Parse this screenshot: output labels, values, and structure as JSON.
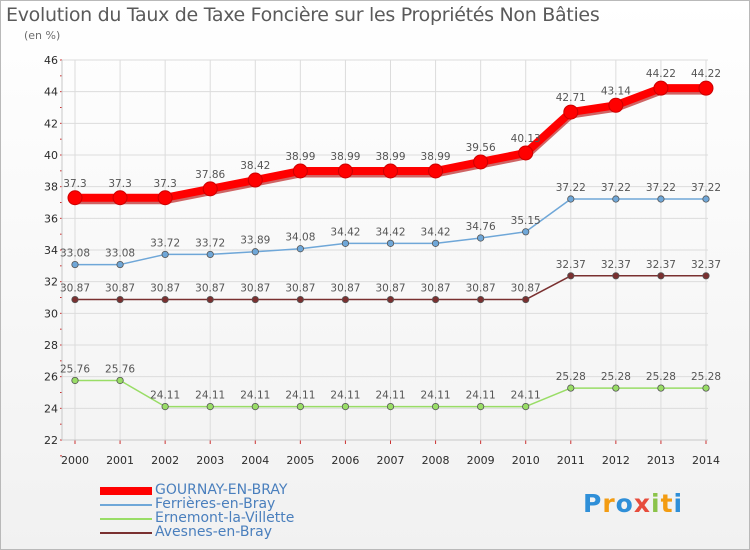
{
  "title": "Evolution du Taux de Taxe Foncière sur les Propriétés Non Bâties",
  "unit_label": "(en %)",
  "logo": {
    "text": "Proxiti",
    "letters": [
      "P",
      "r",
      "o",
      "x",
      "i",
      "t",
      "i"
    ],
    "colors": [
      "#2f8fd8",
      "#f39c12",
      "#2f8fd8",
      "#e74c3c",
      "#8bc34a",
      "#f39c12",
      "#2f8fd8"
    ]
  },
  "chart_data": {
    "type": "line",
    "title": "Evolution du Taux de Taxe Foncière sur les Propriétés Non Bâties",
    "ylabel": "(en %)",
    "xlabel": "",
    "ylim": [
      22,
      46
    ],
    "yticks": [
      22,
      24,
      26,
      28,
      30,
      32,
      34,
      36,
      38,
      40,
      42,
      44,
      46
    ],
    "grid": true,
    "legend_position": "bottom-left",
    "x": [
      "2000",
      "2001",
      "2002",
      "2003",
      "2004",
      "2005",
      "2006",
      "2007",
      "2008",
      "2009",
      "2010",
      "2011",
      "2012",
      "2013",
      "2014"
    ],
    "series": [
      {
        "name": "GOURNAY-EN-BRAY",
        "color": "#ff0000",
        "values": [
          37.3,
          37.3,
          37.3,
          37.86,
          38.42,
          38.99,
          38.99,
          38.99,
          38.99,
          39.56,
          40.13,
          42.71,
          43.14,
          44.22,
          44.22
        ]
      },
      {
        "name": "Ferrières-en-Bray",
        "color": "#6fa7d8",
        "values": [
          33.08,
          33.08,
          33.72,
          33.72,
          33.89,
          34.08,
          34.42,
          34.42,
          34.42,
          34.76,
          35.15,
          37.22,
          37.22,
          37.22,
          37.22
        ]
      },
      {
        "name": "Ernemont-la-Villette",
        "color": "#99dd66",
        "values": [
          25.76,
          25.76,
          24.11,
          24.11,
          24.11,
          24.11,
          24.11,
          24.11,
          24.11,
          24.11,
          24.11,
          25.28,
          25.28,
          25.28,
          25.28
        ]
      },
      {
        "name": "Avesnes-en-Bray",
        "color": "#7a3030",
        "values": [
          30.87,
          30.87,
          30.87,
          30.87,
          30.87,
          30.87,
          30.87,
          30.87,
          30.87,
          30.87,
          30.87,
          32.37,
          32.37,
          32.37,
          32.37
        ]
      }
    ],
    "data_labels": [
      [
        "37.3",
        "37.3",
        "37.3",
        "37.86",
        "38.42",
        "38.99",
        "38.99",
        "38.99",
        "38.99",
        "39.56",
        "40.13",
        "42.71",
        "43.14",
        "44.22",
        "44.22"
      ],
      [
        "33.08",
        "33.08",
        "33.72",
        "33.72",
        "33.89",
        "34.08",
        "34.42",
        "34.42",
        "34.42",
        "34.76",
        "35.15",
        "37.22",
        "37.22",
        "37.22",
        "37.22"
      ],
      [
        "25.76",
        "25.76",
        "24.11",
        "24.11",
        "24.11",
        "24.11",
        "24.11",
        "24.11",
        "24.11",
        "24.11",
        "24.11",
        "25.28",
        "25.28",
        "25.28",
        "25.28"
      ],
      [
        "30.87",
        "30.87",
        "30.87",
        "30.87",
        "30.87",
        "30.87",
        "30.87",
        "30.87",
        "30.87",
        "30.87",
        "30.87",
        "32.37",
        "32.37",
        "32.37",
        "32.37"
      ]
    ]
  }
}
